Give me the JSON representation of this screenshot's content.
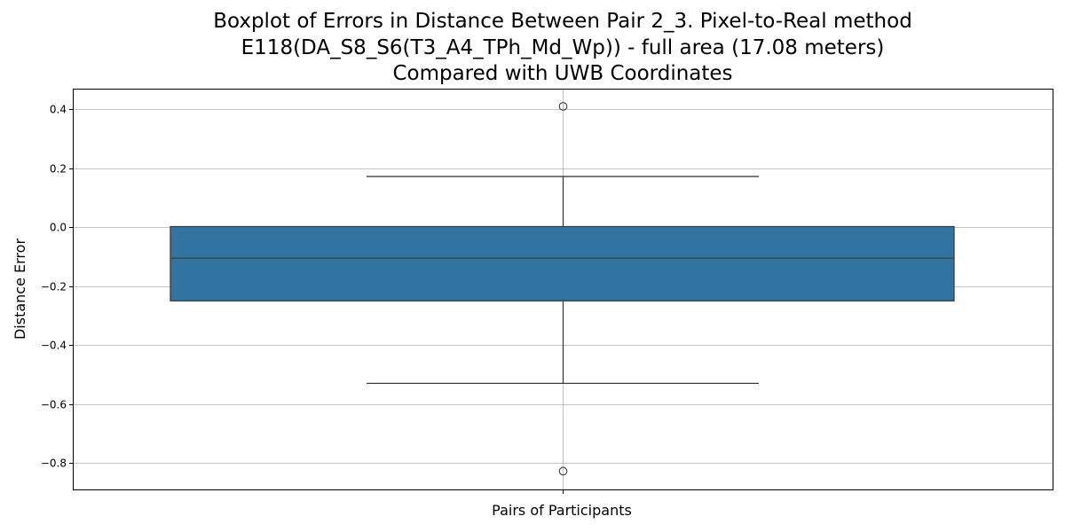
{
  "chart_data": {
    "type": "boxplot",
    "title_lines": [
      "Boxplot of Errors in Distance Between Pair 2_3. Pixel-to-Real method",
      "E118(DA_S8_S6(T3_A4_TPh_Md_Wp)) - full area (17.08 meters)",
      "Compared with UWB Coordinates"
    ],
    "xlabel": "Pairs of Participants",
    "ylabel": "Distance Error",
    "ylim": [
      -0.89,
      0.47
    ],
    "yticks": [
      0.4,
      0.2,
      0.0,
      -0.2,
      -0.4,
      -0.6,
      -0.8
    ],
    "ytick_labels": [
      "0.4",
      "0.2",
      "0.0",
      "−0.2",
      "−0.4",
      "−0.6",
      "−0.8"
    ],
    "grid": true,
    "box": {
      "whisker_low": -0.53,
      "q1": -0.25,
      "median": -0.105,
      "q3": 0.002,
      "whisker_high": 0.172,
      "outliers": [
        0.41,
        -0.828
      ]
    },
    "box_color": "#3274a1"
  }
}
